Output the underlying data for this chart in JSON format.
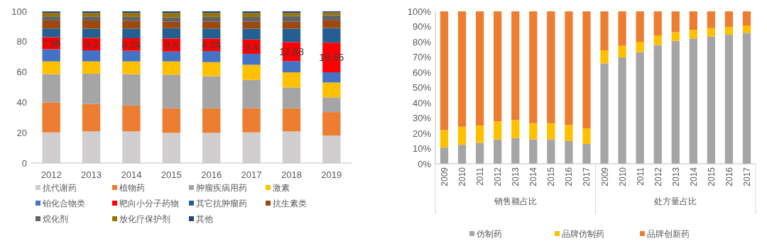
{
  "chart_data": [
    {
      "type": "bar",
      "stacked": true,
      "categories": [
        "2012",
        "2013",
        "2014",
        "2015",
        "2016",
        "2017",
        "2018",
        "2019"
      ],
      "ylim": [
        0,
        100
      ],
      "yticks": [
        0,
        20,
        40,
        60,
        80,
        100
      ],
      "grid": false,
      "legend": "bottom",
      "series": [
        {
          "name": "抗代谢药",
          "color": "#d0cece",
          "values": [
            20.2,
            20.9,
            20.9,
            19.9,
            19.9,
            20.2,
            20.9,
            18.1
          ]
        },
        {
          "name": "植物药",
          "color": "#ed7d31",
          "values": [
            19.8,
            18.0,
            17.0,
            16.2,
            16.2,
            15.9,
            15.2,
            15.5
          ]
        },
        {
          "name": "肿瘤疾病用药",
          "color": "#a5a5a5",
          "values": [
            18.6,
            20.0,
            20.7,
            22.2,
            21.1,
            18.7,
            13.7,
            9.7
          ]
        },
        {
          "name": "激素",
          "color": "#ffc000",
          "values": [
            8.4,
            8.1,
            8.4,
            8.7,
            9.3,
            10.0,
            10.0,
            9.8
          ]
        },
        {
          "name": "铂化合物类",
          "color": "#4472c4",
          "values": [
            8.0,
            7.3,
            7.0,
            6.5,
            7.3,
            7.2,
            7.3,
            6.7
          ]
        },
        {
          "name": "靶向小分子药物",
          "color": "#ff0000",
          "values": [
            7.96,
            8.2,
            8.24,
            8.6,
            8.24,
            9.4,
            12.63,
            19.55
          ],
          "value_labels": [
            "7.96",
            "8.2",
            "8.24",
            "8.6",
            "8.24",
            "9.4",
            "12.63",
            "19.55"
          ]
        },
        {
          "name": "其它抗肿瘤药",
          "color": "#255e91",
          "values": [
            5.7,
            6.1,
            6.4,
            6.8,
            6.6,
            7.2,
            8.9,
            9.6
          ]
        },
        {
          "name": "抗生素类",
          "color": "#9e480e",
          "values": [
            5.3,
            5.3,
            4.9,
            4.2,
            4.5,
            4.5,
            4.5,
            5.0
          ]
        },
        {
          "name": "烷化剂",
          "color": "#636363",
          "values": [
            2.7,
            2.7,
            2.8,
            3.0,
            3.2,
            3.2,
            3.8,
            3.5
          ]
        },
        {
          "name": "放化疗保护剂",
          "color": "#997300",
          "values": [
            2.3,
            2.3,
            2.6,
            2.8,
            2.6,
            2.6,
            2.0,
            1.8
          ]
        },
        {
          "name": "其他",
          "color": "#264478",
          "values": [
            1.0,
            1.1,
            1.1,
            1.1,
            1.1,
            1.1,
            1.1,
            0.8
          ]
        }
      ]
    },
    {
      "type": "bar",
      "stacked": true,
      "categories": [
        "2009",
        "2010",
        "2011",
        "2012",
        "2013",
        "2014",
        "2015",
        "2016",
        "2017",
        "2009",
        "2010",
        "2011",
        "2012",
        "2013",
        "2014",
        "2015",
        "2016",
        "2017"
      ],
      "ylim": [
        0,
        100
      ],
      "yticks": [
        {
          "value": 0,
          "label": "0%"
        },
        {
          "value": 10,
          "label": "10%"
        },
        {
          "value": 20,
          "label": "20%"
        },
        {
          "value": 30,
          "label": "30%"
        },
        {
          "value": 40,
          "label": "40%"
        },
        {
          "value": 50,
          "label": "50%"
        },
        {
          "value": 60,
          "label": "60%"
        },
        {
          "value": 70,
          "label": "70%"
        },
        {
          "value": 80,
          "label": "80%"
        },
        {
          "value": 90,
          "label": "90%"
        },
        {
          "value": 100,
          "label": "100%"
        }
      ],
      "grid": false,
      "legend": "bottom",
      "annotations": [
        "销售额占比",
        "处方量占比"
      ],
      "series": [
        {
          "name": "仿制药",
          "color": "#a5a5a5",
          "values": [
            10.6,
            12.5,
            13.8,
            16.0,
            16.8,
            16.0,
            16.0,
            14.9,
            13.0,
            65.8,
            69.8,
            73.1,
            77.9,
            80.6,
            82.2,
            83.5,
            84.6,
            85.9
          ]
        },
        {
          "name": "品牌仿制药",
          "color": "#ffc000",
          "values": [
            11.5,
            11.8,
            11.3,
            11.8,
            11.8,
            10.6,
            10.6,
            10.5,
            10.2,
            8.6,
            7.6,
            6.9,
            6.3,
            5.8,
            5.6,
            5.5,
            5.2,
            4.8
          ]
        },
        {
          "name": "品牌创新药",
          "color": "#ed7d31",
          "values": [
            77.9,
            75.7,
            74.9,
            72.2,
            71.4,
            73.4,
            73.4,
            74.6,
            76.8,
            25.6,
            22.6,
            20.0,
            15.8,
            13.6,
            12.2,
            11.0,
            10.2,
            9.3
          ]
        }
      ]
    }
  ]
}
